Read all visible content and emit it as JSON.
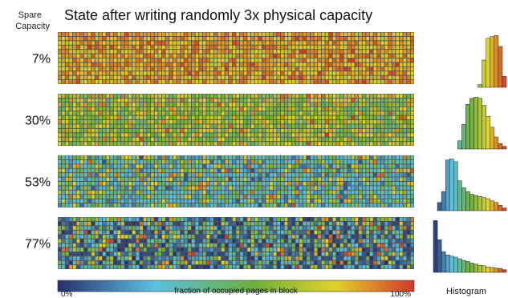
{
  "header": {
    "title": "State after writing randomly 3x physical capacity",
    "spare_label_line1": "Spare",
    "spare_label_line2": "Capacity"
  },
  "colorbar": {
    "min_label": "0%",
    "max_label": "100%",
    "caption": "fraction of occupied pages in block"
  },
  "histogram_label": "Histogram",
  "colors": {
    "scale": [
      "#27306e",
      "#5bc0e0",
      "#6bb03a",
      "#e2d22a",
      "#d2362a"
    ],
    "grid_background": "#55544a"
  },
  "chart_data": {
    "type": "heatmap",
    "title": "State after writing randomly 3x physical capacity",
    "xlabel": "fraction of occupied pages in block",
    "ylabel": "Spare Capacity",
    "value_range": [
      0,
      100
    ],
    "grid": {
      "columns": 96,
      "rows": 12
    },
    "series": [
      {
        "name": "7%",
        "dominant": "red/orange",
        "histogram_bins": [
          0,
          0,
          0,
          0,
          0,
          0,
          0,
          0,
          0,
          0,
          0,
          0.05,
          0.5,
          0.9,
          0.93,
          0.95,
          0.75,
          0.2
        ]
      },
      {
        "name": "30%",
        "dominant": "green",
        "histogram_bins": [
          0,
          0,
          0,
          0,
          0,
          0,
          0.15,
          0.45,
          0.82,
          0.93,
          0.95,
          0.93,
          0.8,
          0.6,
          0.4,
          0.22,
          0.1,
          0.05
        ]
      },
      {
        "name": "53%",
        "dominant": "cyan/green",
        "histogram_bins": [
          0,
          0.15,
          0.35,
          0.93,
          0.95,
          0.9,
          0.55,
          0.42,
          0.35,
          0.3,
          0.28,
          0.26,
          0.24,
          0.22,
          0.18,
          0.15,
          0.1,
          0.05
        ]
      },
      {
        "name": "77%",
        "dominant": "dark blue",
        "histogram_bins": [
          0.95,
          0.6,
          0.38,
          0.32,
          0.3,
          0.28,
          0.25,
          0.22,
          0.2,
          0.17,
          0.15,
          0.13,
          0.12,
          0.1,
          0.09,
          0.08,
          0.07,
          0.05
        ]
      }
    ]
  }
}
